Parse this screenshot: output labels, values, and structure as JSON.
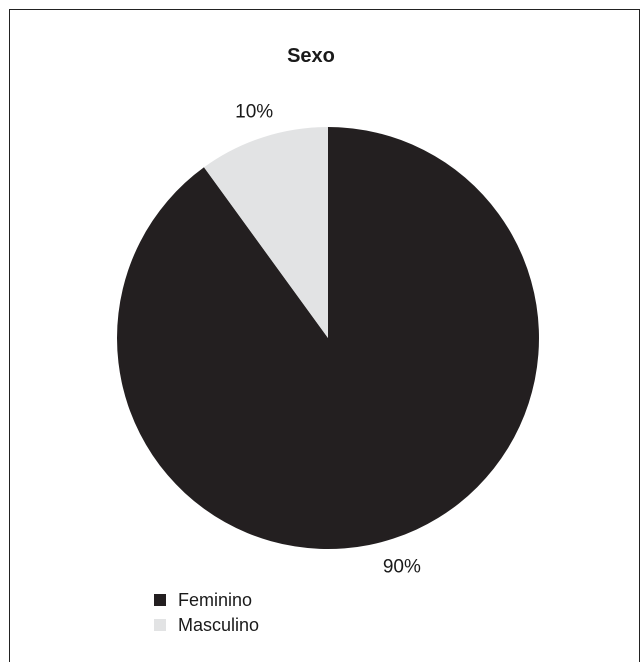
{
  "chart_data": {
    "type": "pie",
    "title": "Sexo",
    "categories": [
      "Feminino",
      "Masculino"
    ],
    "values": [
      90,
      10
    ],
    "labels": [
      "90%",
      "10%"
    ],
    "colors": [
      "#231f20",
      "#e2e3e4"
    ],
    "legend": {
      "position": "bottom-left",
      "items": [
        {
          "label": "Feminino",
          "color": "#231f20"
        },
        {
          "label": "Masculino",
          "color": "#e2e3e4"
        }
      ]
    }
  }
}
